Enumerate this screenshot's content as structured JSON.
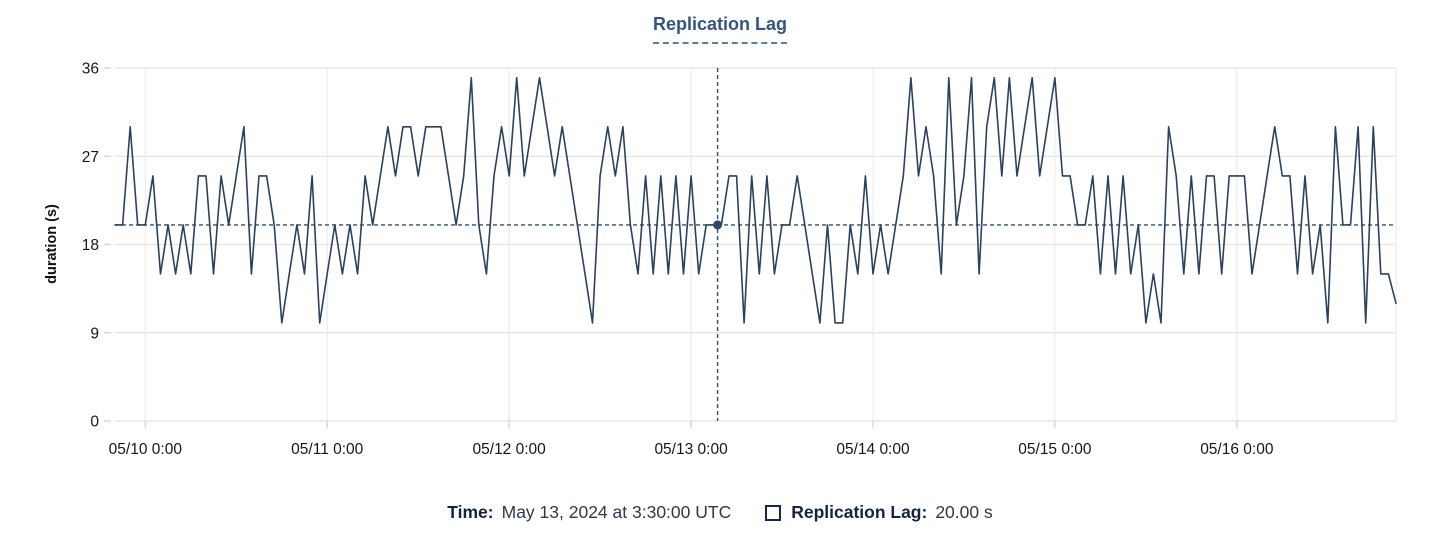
{
  "title": "Replication Lag",
  "colors": {
    "series_line": "#28425f",
    "crosshair": "#2d5273",
    "crosshair_dot": "#2d4a68",
    "title_text": "#35567a",
    "grid_h": "#e7e7e7",
    "grid_v": "#ececec",
    "tick_mark": "#d8d8d8",
    "axis_text": "#161616",
    "footer_label": "#12243f",
    "footer_value": "#2b3a4e"
  },
  "footer": {
    "time_label": "Time:",
    "time_value": "May 13, 2024 at 3:30:00 UTC",
    "series_label": "Replication Lag:",
    "series_value": "20.00 s"
  },
  "chart_data": {
    "type": "line",
    "title": "Replication Lag",
    "xlabel": "",
    "ylabel": "duration (s)",
    "ylim": [
      0,
      36
    ],
    "y_ticks": [
      0,
      9,
      18,
      27,
      36
    ],
    "grid": true,
    "legend_position": "bottom",
    "x_start": "2024-05-09 20:00 UTC",
    "x_step_hours": 1,
    "x_tick_labels": [
      "05/10 0:00",
      "05/11 0:00",
      "05/12 0:00",
      "05/13 0:00",
      "05/14 0:00",
      "05/15 0:00",
      "05/16 0:00"
    ],
    "x_tick_indices": [
      4,
      28,
      52,
      76,
      100,
      124,
      148
    ],
    "series": [
      {
        "name": "Replication Lag",
        "unit": "s",
        "values": [
          20,
          20,
          30,
          20,
          20,
          25,
          15,
          20,
          15,
          20,
          15,
          25,
          25,
          15,
          25,
          20,
          25,
          30,
          15,
          25,
          25,
          20,
          10,
          15,
          20,
          15,
          25,
          10,
          15,
          20,
          15,
          20,
          15,
          25,
          20,
          25,
          30,
          25,
          30,
          30,
          25,
          30,
          30,
          30,
          25,
          20,
          25,
          35,
          20,
          15,
          25,
          30,
          25,
          35,
          25,
          30,
          35,
          30,
          25,
          30,
          25,
          20,
          15,
          10,
          25,
          30,
          25,
          30,
          20,
          15,
          25,
          15,
          25,
          15,
          25,
          15,
          25,
          15,
          20,
          20,
          20,
          25,
          25,
          10,
          25,
          15,
          25,
          15,
          20,
          20,
          25,
          20,
          15,
          10,
          20,
          10,
          10,
          20,
          15,
          25,
          15,
          20,
          15,
          20,
          25,
          35,
          25,
          30,
          25,
          15,
          35,
          20,
          25,
          35,
          15,
          30,
          35,
          25,
          35,
          25,
          30,
          35,
          25,
          30,
          35,
          25,
          25,
          20,
          20,
          25,
          15,
          25,
          15,
          25,
          15,
          20,
          10,
          15,
          10,
          30,
          25,
          15,
          25,
          15,
          25,
          25,
          15,
          25,
          25,
          25,
          15,
          20,
          25,
          30,
          25,
          25,
          15,
          25,
          15,
          20,
          10,
          30,
          20,
          20,
          30,
          10,
          30,
          15,
          15,
          12
        ]
      }
    ],
    "crosshair": {
      "x_index": 79.5,
      "time": "May 13, 2024 at 3:30:00 UTC",
      "value": 20,
      "value_label": "20.00 s"
    }
  }
}
